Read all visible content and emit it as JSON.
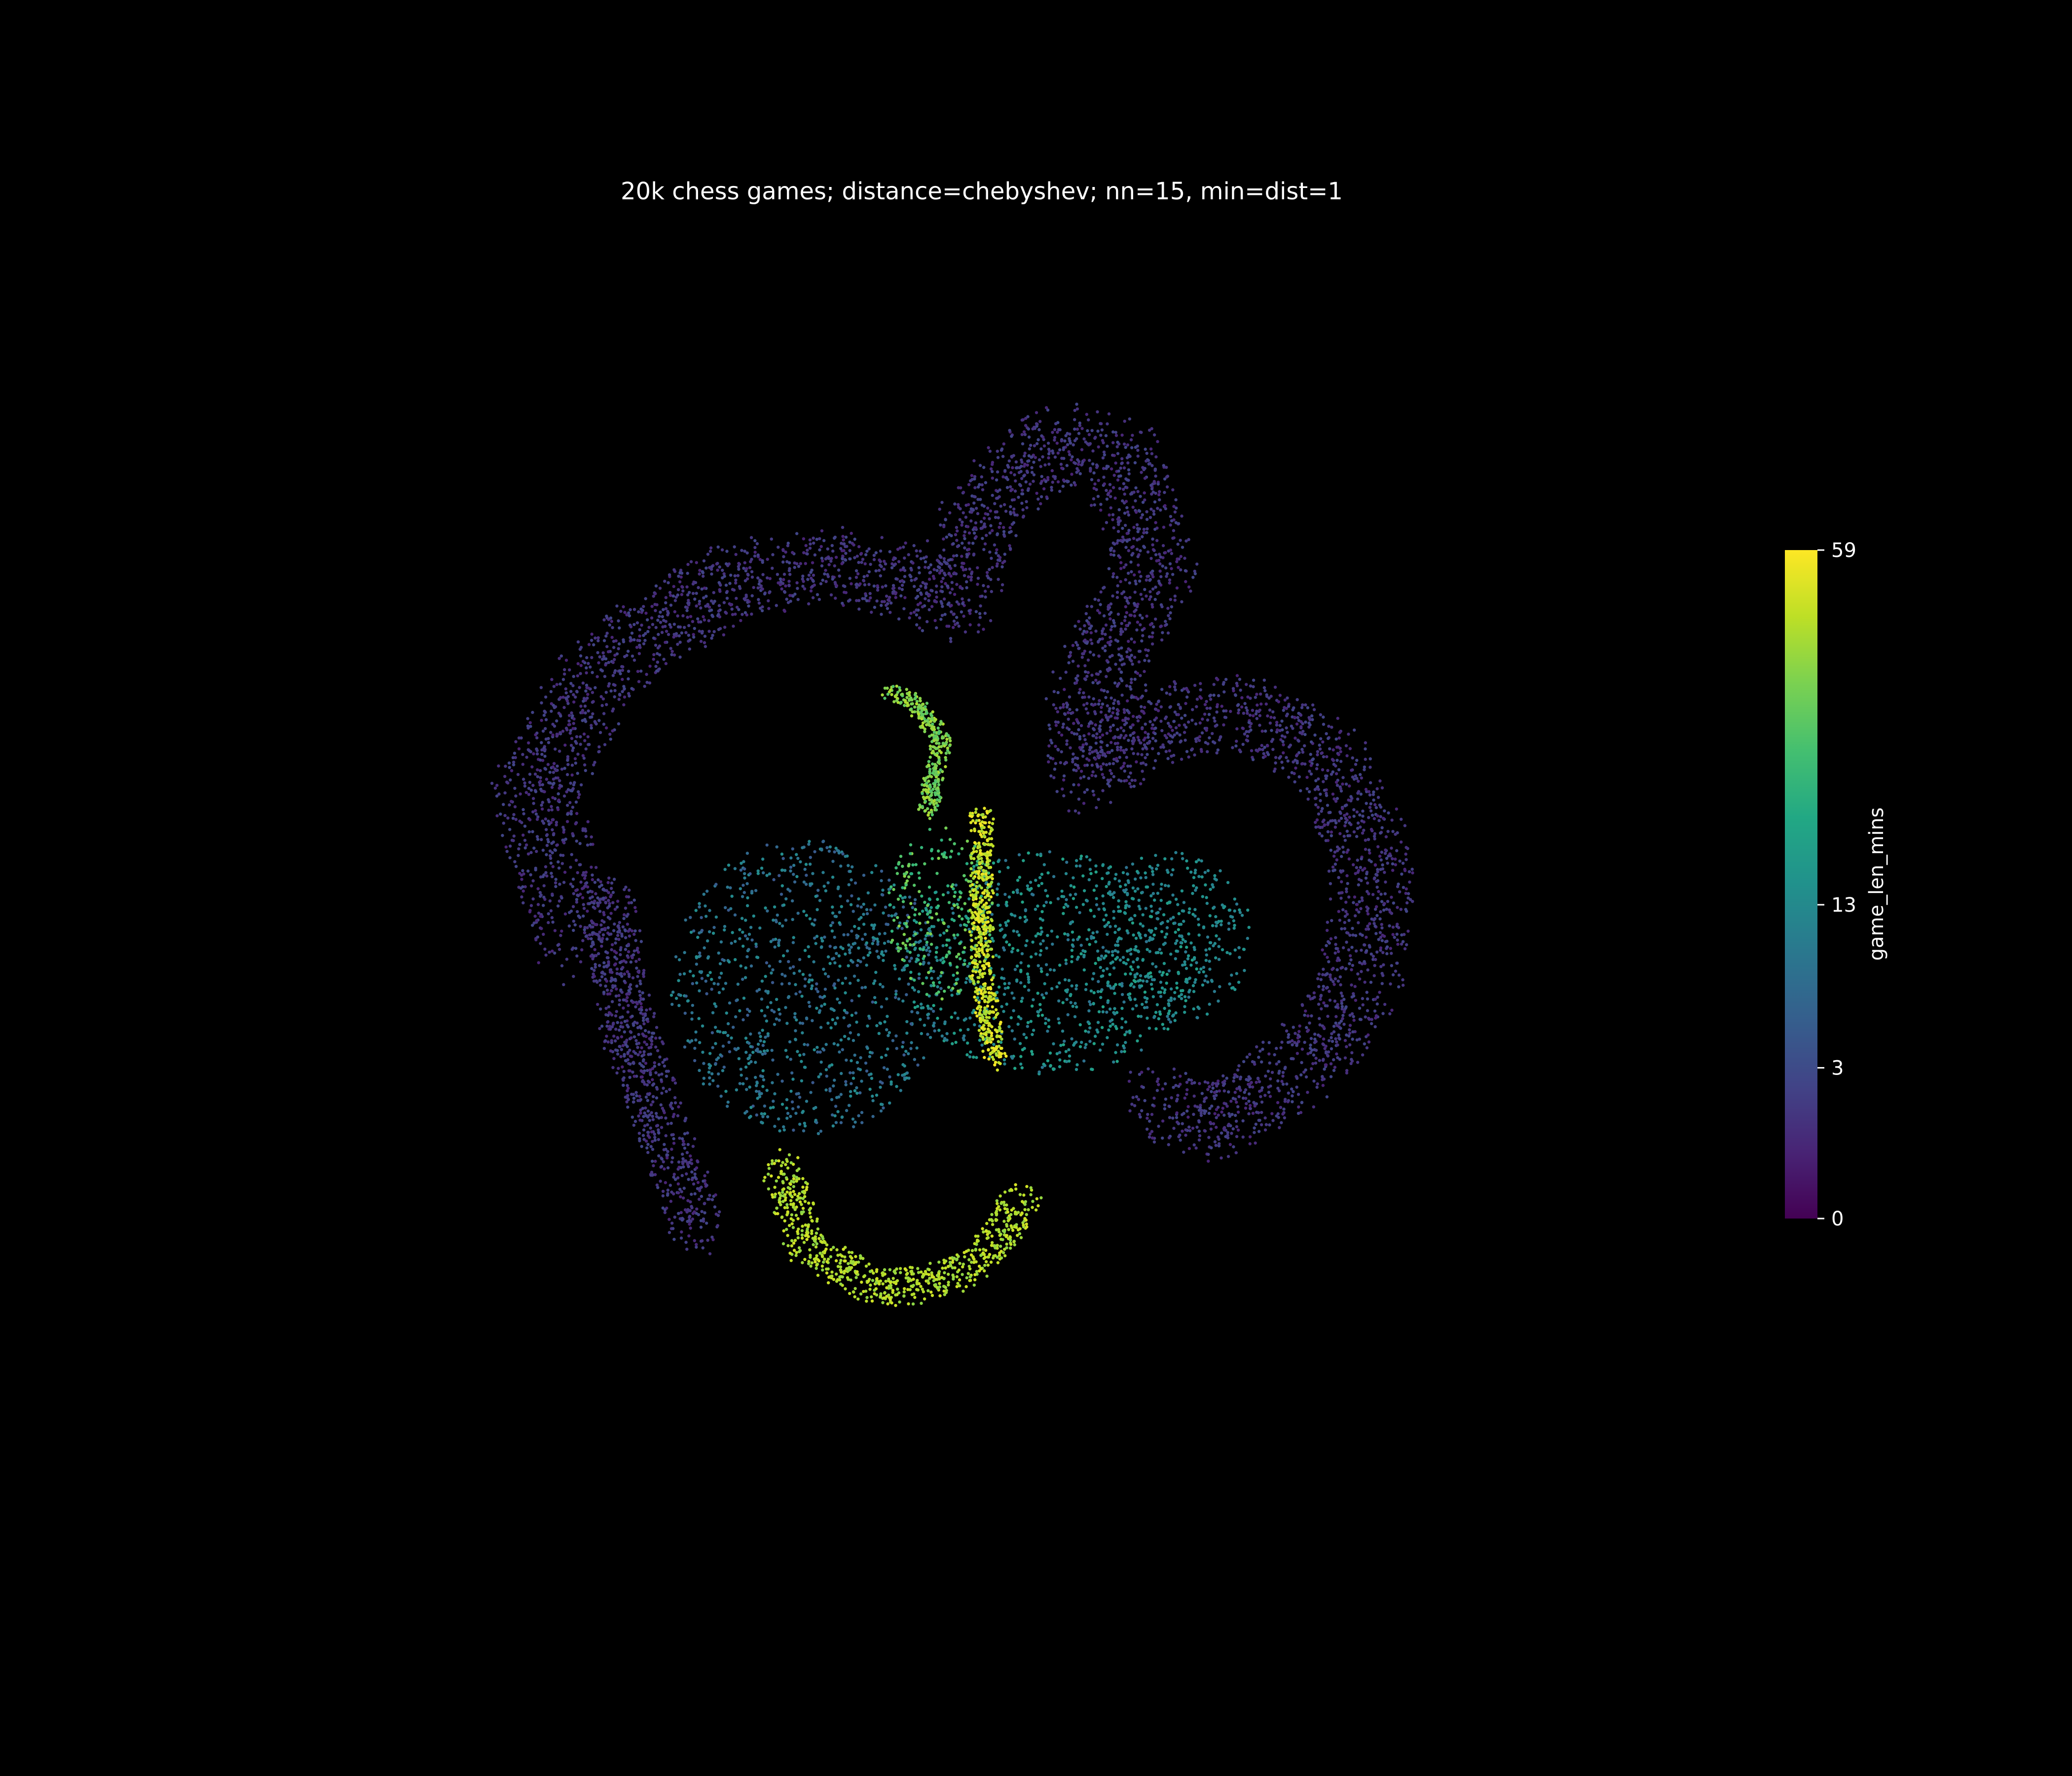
{
  "chart_data": {
    "type": "scatter",
    "title": "20k chess games; distance=chebyshev; nn=15, min=dist=1",
    "axes_visible": false,
    "grid": false,
    "point_count_note": "",
    "color_by": "game_len_mins",
    "colorbar": {
      "label": "game_len_mins",
      "colormap": "viridis",
      "range": [
        0,
        59
      ],
      "ticks": [
        0,
        3,
        13,
        59
      ],
      "tick_labels": [
        "0",
        "3",
        "13",
        "59"
      ],
      "placement": "right"
    },
    "xlim": [
      0,
      100
    ],
    "ylim": [
      0,
      100
    ],
    "clusters": [
      {
        "name": "",
        "value_range": [
          0.5,
          2.5
        ],
        "polyline": [
          [
            20,
            45
          ],
          [
            17,
            58
          ],
          [
            22,
            68
          ],
          [
            32,
            75
          ],
          [
            40,
            76
          ],
          [
            48,
            73
          ],
          [
            50,
            80
          ],
          [
            55,
            86
          ],
          [
            60,
            85
          ],
          [
            63,
            76
          ],
          [
            58,
            66
          ],
          [
            58,
            59
          ],
          [
            62,
            63
          ],
          [
            70,
            64
          ],
          [
            76,
            60
          ],
          [
            79,
            52
          ],
          [
            78,
            42
          ],
          [
            74,
            36
          ],
          [
            67,
            31
          ],
          [
            63,
            33
          ]
        ],
        "spread": 3.3
      },
      {
        "name": "",
        "value_range": [
          0.5,
          2.5
        ],
        "polyline": [
          [
            22,
            50
          ],
          [
            24,
            38
          ],
          [
            27,
            29
          ],
          [
            29,
            22
          ]
        ],
        "spread": 2.2
      },
      {
        "name": "",
        "value_range": [
          4,
          14
        ],
        "ellipse": {
          "cx": 37,
          "cy": 42,
          "rx": 10,
          "ry": 12
        }
      },
      {
        "name": "",
        "value_range": [
          8,
          20
        ],
        "ellipse": {
          "cx": 55,
          "cy": 44,
          "rx": 11,
          "ry": 9
        }
      },
      {
        "name": "",
        "value_range": [
          9,
          16
        ],
        "ellipse": {
          "cx": 64,
          "cy": 46,
          "rx": 6,
          "ry": 7
        }
      },
      {
        "name": "",
        "value_range": [
          22,
          40
        ],
        "ellipse": {
          "cx": 47,
          "cy": 48,
          "rx": 4,
          "ry": 7
        }
      },
      {
        "name": "",
        "value_range": [
          30,
          46
        ],
        "polyline": [
          [
            46,
            56
          ],
          [
            47,
            62
          ],
          [
            45,
            65
          ],
          [
            43,
            66
          ]
        ],
        "spread": 0.8
      },
      {
        "name": "",
        "value_range": [
          42,
          58
        ],
        "polyline": [
          [
            50,
            56
          ],
          [
            50,
            50
          ],
          [
            50,
            43
          ],
          [
            51,
            36
          ]
        ],
        "spread": 0.9
      },
      {
        "name": "",
        "value_range": [
          40,
          52
        ],
        "polyline": [
          [
            35,
            28
          ],
          [
            37,
            21
          ],
          [
            42,
            18
          ],
          [
            46,
            18
          ],
          [
            50,
            20
          ],
          [
            53,
            25
          ]
        ],
        "spread": 1.6
      }
    ]
  }
}
